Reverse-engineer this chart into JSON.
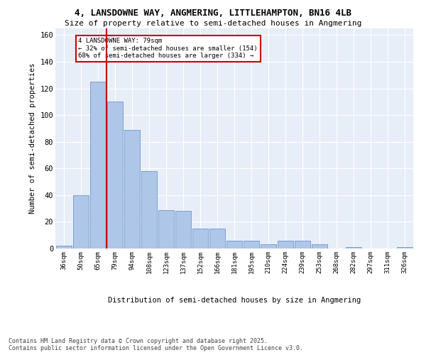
{
  "title_line1": "4, LANSDOWNE WAY, ANGMERING, LITTLEHAMPTON, BN16 4LB",
  "title_line2": "Size of property relative to semi-detached houses in Angmering",
  "xlabel": "Distribution of semi-detached houses by size in Angmering",
  "ylabel": "Number of semi-detached properties",
  "categories": [
    "36sqm",
    "50sqm",
    "65sqm",
    "79sqm",
    "94sqm",
    "108sqm",
    "123sqm",
    "137sqm",
    "152sqm",
    "166sqm",
    "181sqm",
    "195sqm",
    "210sqm",
    "224sqm",
    "239sqm",
    "253sqm",
    "268sqm",
    "282sqm",
    "297sqm",
    "311sqm",
    "326sqm"
  ],
  "values": [
    2,
    40,
    125,
    110,
    89,
    58,
    29,
    28,
    15,
    15,
    6,
    6,
    3,
    6,
    6,
    3,
    0,
    1,
    0,
    0,
    1
  ],
  "bar_color": "#aec6e8",
  "bar_edge_color": "#5b8ac5",
  "vline_x_index": 3,
  "vline_color": "#cc0000",
  "annotation_title": "4 LANSDOWNE WAY: 79sqm",
  "annotation_line2": "← 32% of semi-detached houses are smaller (154)",
  "annotation_line3": "68% of semi-detached houses are larger (334) →",
  "annotation_box_color": "#cc0000",
  "ylim": [
    0,
    165
  ],
  "yticks": [
    0,
    20,
    40,
    60,
    80,
    100,
    120,
    140,
    160
  ],
  "bg_color": "#e8eef8",
  "footer_line1": "Contains HM Land Registry data © Crown copyright and database right 2025.",
  "footer_line2": "Contains public sector information licensed under the Open Government Licence v3.0."
}
